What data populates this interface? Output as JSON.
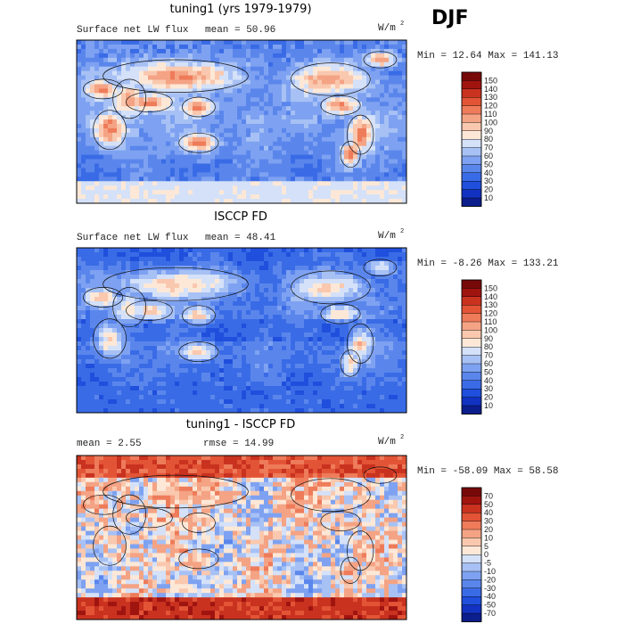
{
  "season": "DJF",
  "chart_data": [
    {
      "type": "heatmap",
      "title": "tuning1 (yrs 1979-1979)",
      "field_label": "Surface net LW flux",
      "stat1_label": "mean =",
      "stat1_value": "50.96",
      "stat2_label": "",
      "stat2_value": "",
      "units": "W/m",
      "units_exp": "2",
      "min_label": "Min =",
      "min_value": "12.64",
      "max_label": "Max =",
      "max_value": "141.13",
      "levels": [
        10,
        20,
        30,
        40,
        50,
        60,
        70,
        80,
        90,
        100,
        110,
        120,
        130,
        140,
        150
      ],
      "level_labels": [
        "10",
        "20",
        "30",
        "40",
        "50",
        "60",
        "70",
        "80",
        "90",
        "100",
        "110",
        "120",
        "130",
        "140",
        "150"
      ],
      "colors": [
        "#0c1d8c",
        "#1232c2",
        "#1f4fdc",
        "#3a6be6",
        "#5a86ec",
        "#7ea2f1",
        "#a7c1f5",
        "#d4e1f8",
        "#fde8d7",
        "#f9c8ae",
        "#f4a384",
        "#ee7b5a",
        "#e35436",
        "#c9321f",
        "#a01410",
        "#780909"
      ],
      "range": [
        10,
        150
      ]
    },
    {
      "type": "heatmap",
      "title": "ISCCP FD",
      "field_label": "Surface net LW flux",
      "stat1_label": "mean =",
      "stat1_value": "48.41",
      "stat2_label": "",
      "stat2_value": "",
      "units": "W/m",
      "units_exp": "2",
      "min_label": "Min =",
      "min_value": "-8.26",
      "max_label": "Max =",
      "max_value": "133.21",
      "levels": [
        10,
        20,
        30,
        40,
        50,
        60,
        70,
        80,
        90,
        100,
        110,
        120,
        130,
        140,
        150
      ],
      "level_labels": [
        "10",
        "20",
        "30",
        "40",
        "50",
        "60",
        "70",
        "80",
        "90",
        "100",
        "110",
        "120",
        "130",
        "140",
        "150"
      ],
      "colors": [
        "#0c1d8c",
        "#1232c2",
        "#1f4fdc",
        "#3a6be6",
        "#5a86ec",
        "#7ea2f1",
        "#a7c1f5",
        "#d4e1f8",
        "#fde8d7",
        "#f9c8ae",
        "#f4a384",
        "#ee7b5a",
        "#e35436",
        "#c9321f",
        "#a01410",
        "#780909"
      ],
      "range": [
        10,
        150
      ]
    },
    {
      "type": "heatmap",
      "title": "tuning1 - ISCCP FD",
      "field_label": "",
      "stat1_label": "mean =",
      "stat1_value": "2.55",
      "stat2_label": "rmse =",
      "stat2_value": "14.99",
      "units": "W/m",
      "units_exp": "2",
      "min_label": "Min =",
      "min_value": "-58.09",
      "max_label": "Max =",
      "max_value": "58.58",
      "levels": [
        -70,
        -50,
        -40,
        -30,
        -20,
        -10,
        -5,
        0,
        5,
        10,
        20,
        30,
        40,
        50,
        70
      ],
      "level_labels": [
        "-70",
        "-50",
        "-40",
        "-30",
        "-20",
        "-10",
        "-5",
        "0",
        "5",
        "10",
        "20",
        "30",
        "40",
        "50",
        "70"
      ],
      "colors": [
        "#0c1d8c",
        "#1232c2",
        "#1f4fdc",
        "#3a6be6",
        "#5a86ec",
        "#7ea2f1",
        "#a7c1f5",
        "#d4e1f8",
        "#fde8d7",
        "#f9c8ae",
        "#f4a384",
        "#ee7b5a",
        "#e35436",
        "#c9321f",
        "#a01410",
        "#780909"
      ],
      "range": [
        -70,
        70
      ]
    }
  ]
}
